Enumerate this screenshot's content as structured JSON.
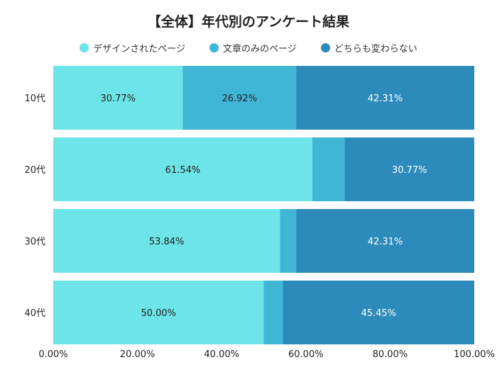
{
  "chart_data": {
    "type": "bar",
    "orientation": "horizontal",
    "stacked": true,
    "title": "【全体】年代別のアンケート結果",
    "categories": [
      "10代",
      "20代",
      "30代",
      "40代"
    ],
    "series": [
      {
        "name": "デザインされたページ",
        "color": "#6ce4e8",
        "label_color": "#222222",
        "values": [
          30.77,
          61.54,
          53.84,
          50.0
        ],
        "labels": [
          "30.77%",
          "61.54%",
          "53.84%",
          "50.00%"
        ]
      },
      {
        "name": "文章のみのページ",
        "color": "#40b6d6",
        "label_color": "#222222",
        "values": [
          26.92,
          7.69,
          3.85,
          4.55
        ],
        "labels": [
          "26.92%",
          "",
          "",
          ""
        ]
      },
      {
        "name": "どちらも変わらない",
        "color": "#2d8bbb",
        "label_color": "#ffffff",
        "values": [
          42.31,
          30.77,
          42.31,
          45.45
        ],
        "labels": [
          "42.31%",
          "30.77%",
          "42.31%",
          "45.45%"
        ]
      }
    ],
    "xlim": [
      0,
      100
    ],
    "xticks": [
      "0.00%",
      "20.00%",
      "40.00%",
      "60.00%",
      "80.00%",
      "100.00%"
    ],
    "grid": false,
    "legend_position": "top"
  }
}
